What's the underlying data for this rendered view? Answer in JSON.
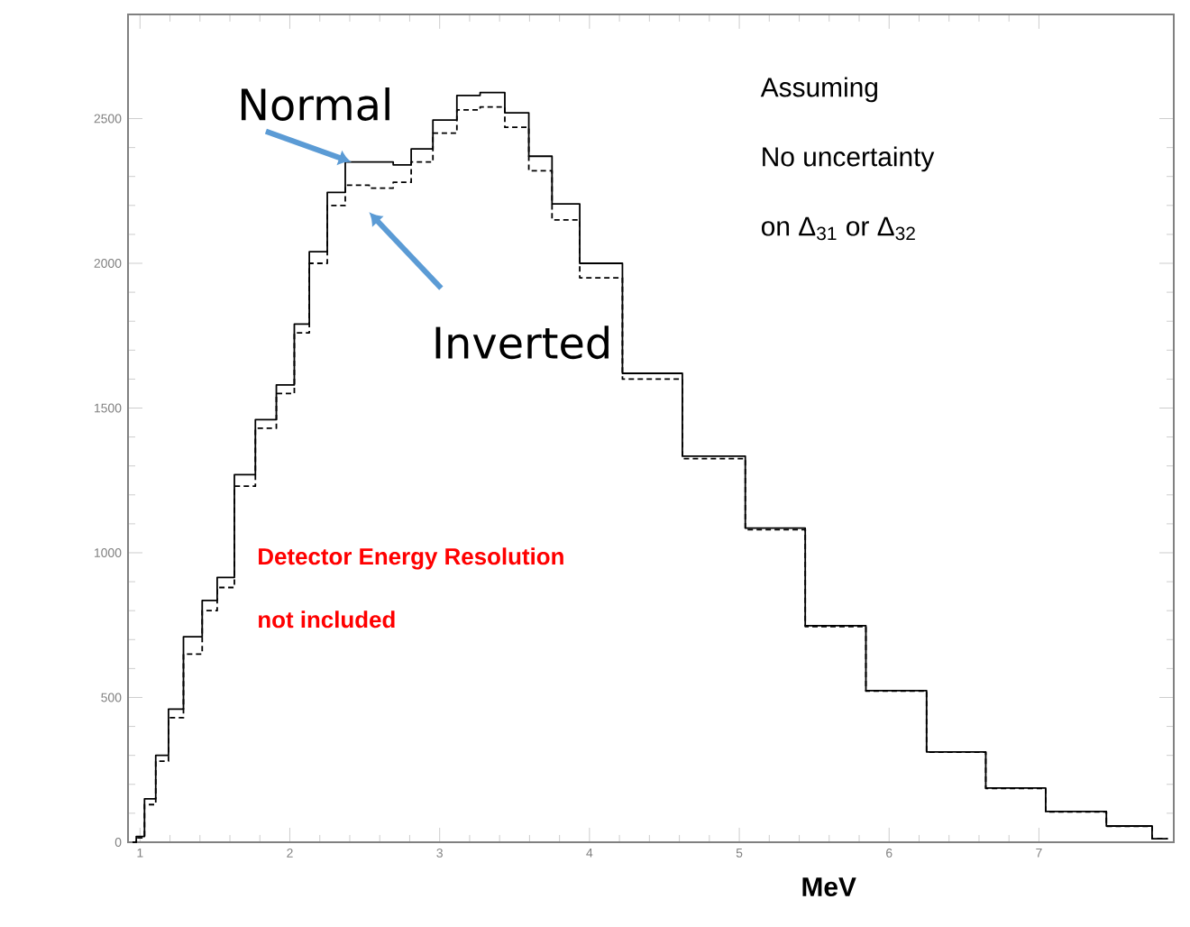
{
  "chart_data": {
    "type": "step",
    "xlabel": "MeV",
    "xlim": [
      0.92,
      7.9
    ],
    "ylim": [
      0,
      2860
    ],
    "xticks": [
      1,
      2,
      3,
      4,
      5,
      6,
      7
    ],
    "yticks": [
      0,
      500,
      1000,
      1500,
      2000,
      2500
    ],
    "series": [
      {
        "name": "Normal",
        "color": "#000000",
        "line_style": "solid",
        "x": [
          0.95,
          1.0,
          1.06,
          1.15,
          1.23,
          1.35,
          1.48,
          1.55,
          1.71,
          1.83,
          1.99,
          2.07,
          2.19,
          2.31,
          2.43,
          2.63,
          2.75,
          2.87,
          3.04,
          3.19,
          3.35,
          3.52,
          3.67,
          3.83,
          4.04,
          4.4,
          4.84,
          5.24,
          5.64,
          6.05,
          6.45,
          6.84,
          7.25,
          7.65,
          7.86
        ],
        "values": [
          0,
          20,
          150,
          300,
          460,
          710,
          835,
          915,
          1270,
          1460,
          1580,
          1790,
          2040,
          2245,
          2350,
          2350,
          2340,
          2395,
          2495,
          2580,
          2590,
          2520,
          2370,
          2205,
          2000,
          1620,
          1334,
          1085,
          748,
          524,
          312,
          187,
          106,
          56,
          12
        ]
      },
      {
        "name": "Inverted",
        "color": "#000000",
        "line_style": "dashed",
        "x": [
          0.95,
          1.0,
          1.06,
          1.15,
          1.23,
          1.35,
          1.48,
          1.55,
          1.71,
          1.83,
          1.99,
          2.07,
          2.19,
          2.31,
          2.43,
          2.63,
          2.75,
          2.87,
          3.04,
          3.19,
          3.35,
          3.52,
          3.67,
          3.83,
          4.04,
          4.4,
          4.84,
          5.24,
          5.64,
          6.05,
          6.45,
          6.84,
          7.25,
          7.65,
          7.86
        ],
        "values": [
          0,
          15,
          130,
          280,
          430,
          650,
          800,
          880,
          1230,
          1430,
          1550,
          1760,
          2000,
          2200,
          2270,
          2260,
          2280,
          2350,
          2450,
          2530,
          2540,
          2470,
          2320,
          2150,
          1950,
          1600,
          1325,
          1080,
          745,
          522,
          311,
          186,
          105,
          55,
          12
        ]
      }
    ],
    "annotations": [
      "Assuming",
      "No uncertainty",
      "on Δ$_{31}$ or Δ$_{32}$",
      "Detector Energy Resolution",
      "not included"
    ]
  }
}
